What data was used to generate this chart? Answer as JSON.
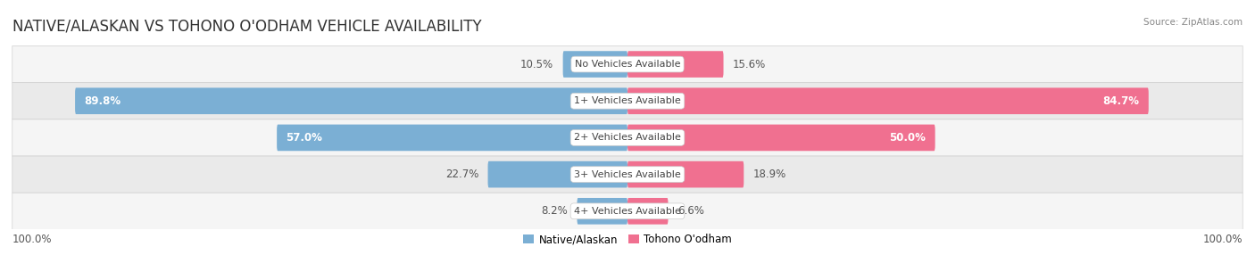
{
  "title": "NATIVE/ALASKAN VS TOHONO O'ODHAM VEHICLE AVAILABILITY",
  "source": "Source: ZipAtlas.com",
  "categories": [
    "No Vehicles Available",
    "1+ Vehicles Available",
    "2+ Vehicles Available",
    "3+ Vehicles Available",
    "4+ Vehicles Available"
  ],
  "left_values": [
    10.5,
    89.8,
    57.0,
    22.7,
    8.2
  ],
  "right_values": [
    15.6,
    84.7,
    50.0,
    18.9,
    6.6
  ],
  "left_label": "Native/Alaskan",
  "right_label": "Tohono O'odham",
  "left_color": "#7BAFD4",
  "right_color": "#F07090",
  "max_val": 100.0,
  "title_fontsize": 12,
  "label_fontsize": 8.5,
  "category_fontsize": 8,
  "footer_fontsize": 8.5
}
